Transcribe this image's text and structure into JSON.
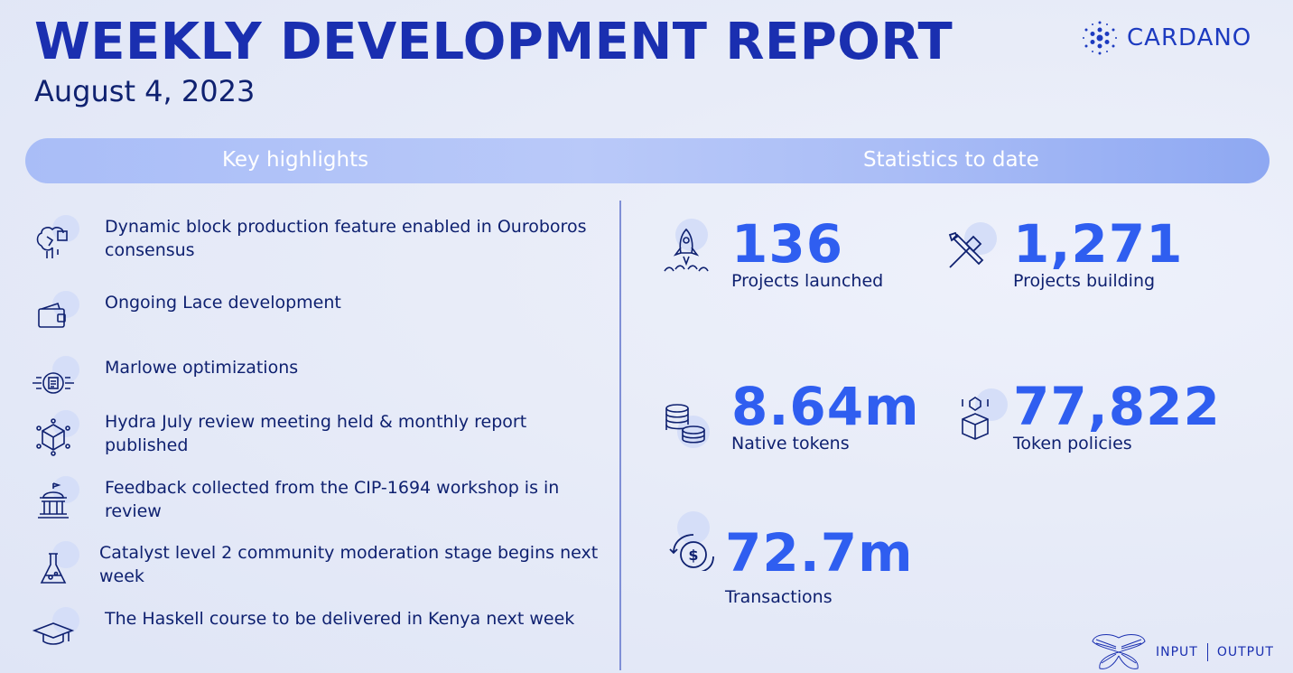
{
  "header": {
    "title": "WEEKLY DEVELOPMENT REPORT",
    "date": "August 4, 2023",
    "brand": "CARDANO",
    "footer_brand_left": "INPUT",
    "footer_brand_right": "OUTPUT"
  },
  "banner": {
    "left": "Key highlights",
    "right": "Statistics to date"
  },
  "highlights": [
    {
      "icon": "brain-chip-icon",
      "text": "Dynamic block production feature enabled in Ouroboros consensus"
    },
    {
      "icon": "wallet-icon",
      "text": "Ongoing Lace development"
    },
    {
      "icon": "document-network-icon",
      "text": "Marlowe optimizations"
    },
    {
      "icon": "cube-network-icon",
      "text": "Hydra July review meeting held & monthly report published"
    },
    {
      "icon": "government-building-icon",
      "text": "Feedback collected from the CIP-1694 workshop is in review"
    },
    {
      "icon": "flask-icon",
      "text": "Catalyst level 2 community moderation stage begins next week"
    },
    {
      "icon": "graduation-cap-icon",
      "text": "The Haskell course to be delivered in Kenya next week"
    }
  ],
  "stats": [
    {
      "icon": "rocket-icon",
      "value": "136",
      "label": "Projects launched"
    },
    {
      "icon": "tools-icon",
      "value": "1,271",
      "label": "Projects building"
    },
    {
      "icon": "coins-icon",
      "value": "8.64m",
      "label": "Native tokens"
    },
    {
      "icon": "token-box-icon",
      "value": "77,822",
      "label": "Token policies"
    },
    {
      "icon": "transaction-icon",
      "value": "72.7m",
      "label": "Transactions"
    }
  ],
  "colors": {
    "title": "#1a2fb0",
    "stat_number": "#2f5ef0",
    "text": "#0f2170",
    "banner": "#a9bdf7"
  }
}
